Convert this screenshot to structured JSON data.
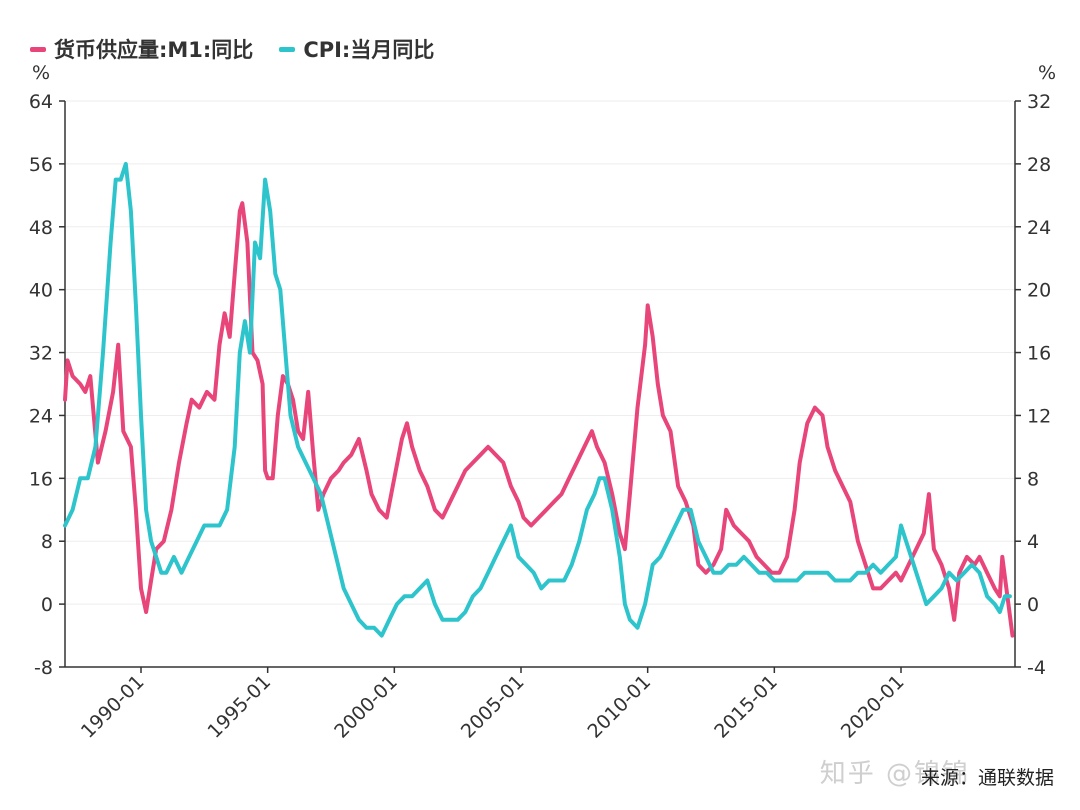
{
  "legend": {
    "m1_label": "货币供应量:M1:同比",
    "cpi_label": "CPI:当月同比"
  },
  "axes": {
    "left_unit": "%",
    "right_unit": "%"
  },
  "watermark": "知乎 @锦锦",
  "source": "来源：通联数据",
  "colors": {
    "m1": "#e8457a",
    "cpi": "#2ec4cc",
    "axis": "#333333",
    "grid": "#eeeeee"
  },
  "chart_data": {
    "type": "line",
    "title": "",
    "x_domain": [
      1987.0,
      2024.5
    ],
    "x_ticks": [
      {
        "x": 1990.0,
        "label": "1990-01"
      },
      {
        "x": 1995.0,
        "label": "1995-01"
      },
      {
        "x": 2000.0,
        "label": "2000-01"
      },
      {
        "x": 2005.0,
        "label": "2005-01"
      },
      {
        "x": 2010.0,
        "label": "2010-01"
      },
      {
        "x": 2015.0,
        "label": "2015-01"
      },
      {
        "x": 2020.0,
        "label": "2020-01"
      }
    ],
    "y_left": {
      "ylim": [
        -8,
        64
      ],
      "ticks": [
        -8,
        0,
        8,
        16,
        24,
        32,
        40,
        48,
        56,
        64
      ],
      "unit": "%"
    },
    "y_right": {
      "ylim": [
        -4,
        32
      ],
      "ticks": [
        -4,
        0,
        4,
        8,
        12,
        16,
        20,
        24,
        28,
        32
      ],
      "unit": "%"
    },
    "legend_position": "top-left",
    "grid": true,
    "series": [
      {
        "name": "货币供应量:M1:同比",
        "axis": "left",
        "color": "#e8457a",
        "points": [
          [
            1987.0,
            26
          ],
          [
            1987.1,
            31
          ],
          [
            1987.3,
            29
          ],
          [
            1987.6,
            28
          ],
          [
            1987.8,
            27
          ],
          [
            1988.0,
            29
          ],
          [
            1988.3,
            18
          ],
          [
            1988.6,
            22
          ],
          [
            1988.9,
            27
          ],
          [
            1989.1,
            33
          ],
          [
            1989.3,
            22
          ],
          [
            1989.6,
            20
          ],
          [
            1989.8,
            12
          ],
          [
            1990.0,
            2
          ],
          [
            1990.2,
            -1
          ],
          [
            1990.4,
            3
          ],
          [
            1990.6,
            7
          ],
          [
            1990.9,
            8
          ],
          [
            1991.2,
            12
          ],
          [
            1991.5,
            18
          ],
          [
            1991.8,
            23
          ],
          [
            1992.0,
            26
          ],
          [
            1992.3,
            25
          ],
          [
            1992.6,
            27
          ],
          [
            1992.9,
            26
          ],
          [
            1993.1,
            33
          ],
          [
            1993.3,
            37
          ],
          [
            1993.5,
            34
          ],
          [
            1993.7,
            42
          ],
          [
            1993.9,
            50
          ],
          [
            1994.0,
            51
          ],
          [
            1994.2,
            46
          ],
          [
            1994.4,
            32
          ],
          [
            1994.6,
            31
          ],
          [
            1994.8,
            28
          ],
          [
            1994.9,
            17
          ],
          [
            1995.0,
            16
          ],
          [
            1995.2,
            16
          ],
          [
            1995.4,
            24
          ],
          [
            1995.6,
            29
          ],
          [
            1995.8,
            28
          ],
          [
            1996.0,
            26
          ],
          [
            1996.2,
            22
          ],
          [
            1996.4,
            21
          ],
          [
            1996.6,
            27
          ],
          [
            1996.8,
            19
          ],
          [
            1997.0,
            12
          ],
          [
            1997.2,
            14
          ],
          [
            1997.5,
            16
          ],
          [
            1997.8,
            17
          ],
          [
            1998.0,
            18
          ],
          [
            1998.3,
            19
          ],
          [
            1998.6,
            21
          ],
          [
            1998.9,
            17
          ],
          [
            1999.1,
            14
          ],
          [
            1999.4,
            12
          ],
          [
            1999.7,
            11
          ],
          [
            2000.0,
            16
          ],
          [
            2000.3,
            21
          ],
          [
            2000.5,
            23
          ],
          [
            2000.7,
            20
          ],
          [
            2001.0,
            17
          ],
          [
            2001.3,
            15
          ],
          [
            2001.6,
            12
          ],
          [
            2001.9,
            11
          ],
          [
            2002.2,
            13
          ],
          [
            2002.5,
            15
          ],
          [
            2002.8,
            17
          ],
          [
            2003.1,
            18
          ],
          [
            2003.4,
            19
          ],
          [
            2003.7,
            20
          ],
          [
            2004.0,
            19
          ],
          [
            2004.3,
            18
          ],
          [
            2004.6,
            15
          ],
          [
            2004.9,
            13
          ],
          [
            2005.1,
            11
          ],
          [
            2005.4,
            10
          ],
          [
            2005.7,
            11
          ],
          [
            2006.0,
            12
          ],
          [
            2006.3,
            13
          ],
          [
            2006.6,
            14
          ],
          [
            2006.9,
            16
          ],
          [
            2007.2,
            18
          ],
          [
            2007.5,
            20
          ],
          [
            2007.8,
            22
          ],
          [
            2008.0,
            20
          ],
          [
            2008.3,
            18
          ],
          [
            2008.6,
            14
          ],
          [
            2008.9,
            9
          ],
          [
            2009.1,
            7
          ],
          [
            2009.3,
            14
          ],
          [
            2009.6,
            25
          ],
          [
            2009.9,
            33
          ],
          [
            2010.0,
            38
          ],
          [
            2010.2,
            34
          ],
          [
            2010.4,
            28
          ],
          [
            2010.6,
            24
          ],
          [
            2010.9,
            22
          ],
          [
            2011.2,
            15
          ],
          [
            2011.5,
            13
          ],
          [
            2011.8,
            10
          ],
          [
            2012.0,
            5
          ],
          [
            2012.3,
            4
          ],
          [
            2012.6,
            5
          ],
          [
            2012.9,
            7
          ],
          [
            2013.1,
            12
          ],
          [
            2013.4,
            10
          ],
          [
            2013.7,
            9
          ],
          [
            2014.0,
            8
          ],
          [
            2014.3,
            6
          ],
          [
            2014.6,
            5
          ],
          [
            2014.9,
            4
          ],
          [
            2015.2,
            4
          ],
          [
            2015.5,
            6
          ],
          [
            2015.8,
            12
          ],
          [
            2016.0,
            18
          ],
          [
            2016.3,
            23
          ],
          [
            2016.6,
            25
          ],
          [
            2016.9,
            24
          ],
          [
            2017.1,
            20
          ],
          [
            2017.4,
            17
          ],
          [
            2017.7,
            15
          ],
          [
            2018.0,
            13
          ],
          [
            2018.3,
            8
          ],
          [
            2018.6,
            5
          ],
          [
            2018.9,
            2
          ],
          [
            2019.2,
            2
          ],
          [
            2019.5,
            3
          ],
          [
            2019.8,
            4
          ],
          [
            2020.0,
            3
          ],
          [
            2020.3,
            5
          ],
          [
            2020.6,
            7
          ],
          [
            2020.9,
            9
          ],
          [
            2021.1,
            14
          ],
          [
            2021.3,
            7
          ],
          [
            2021.6,
            5
          ],
          [
            2021.9,
            2
          ],
          [
            2022.1,
            -2
          ],
          [
            2022.3,
            4
          ],
          [
            2022.6,
            6
          ],
          [
            2022.9,
            5
          ],
          [
            2023.1,
            6
          ],
          [
            2023.4,
            4
          ],
          [
            2023.7,
            2
          ],
          [
            2023.9,
            1
          ],
          [
            2024.0,
            6
          ],
          [
            2024.2,
            1
          ],
          [
            2024.4,
            -4
          ]
        ]
      },
      {
        "name": "CPI:当月同比",
        "axis": "right",
        "color": "#2ec4cc",
        "points": [
          [
            1987.0,
            5
          ],
          [
            1987.3,
            6
          ],
          [
            1987.6,
            8
          ],
          [
            1987.9,
            8
          ],
          [
            1988.2,
            10
          ],
          [
            1988.5,
            16
          ],
          [
            1988.8,
            23
          ],
          [
            1989.0,
            27
          ],
          [
            1989.2,
            27
          ],
          [
            1989.4,
            28
          ],
          [
            1989.6,
            25
          ],
          [
            1989.8,
            19
          ],
          [
            1990.0,
            12
          ],
          [
            1990.2,
            6
          ],
          [
            1990.4,
            4
          ],
          [
            1990.6,
            3
          ],
          [
            1990.8,
            2
          ],
          [
            1991.0,
            2
          ],
          [
            1991.3,
            3
          ],
          [
            1991.6,
            2
          ],
          [
            1991.9,
            3
          ],
          [
            1992.2,
            4
          ],
          [
            1992.5,
            5
          ],
          [
            1992.8,
            5
          ],
          [
            1993.1,
            5
          ],
          [
            1993.4,
            6
          ],
          [
            1993.7,
            10
          ],
          [
            1993.9,
            16
          ],
          [
            1994.1,
            18
          ],
          [
            1994.3,
            16
          ],
          [
            1994.5,
            23
          ],
          [
            1994.7,
            22
          ],
          [
            1994.9,
            27
          ],
          [
            1995.1,
            25
          ],
          [
            1995.3,
            21
          ],
          [
            1995.5,
            20
          ],
          [
            1995.7,
            16
          ],
          [
            1995.9,
            12
          ],
          [
            1996.2,
            10
          ],
          [
            1996.5,
            9
          ],
          [
            1996.8,
            8
          ],
          [
            1997.1,
            7
          ],
          [
            1997.4,
            5
          ],
          [
            1997.7,
            3
          ],
          [
            1998.0,
            1
          ],
          [
            1998.3,
            0
          ],
          [
            1998.6,
            -1
          ],
          [
            1998.9,
            -1.5
          ],
          [
            1999.2,
            -1.5
          ],
          [
            1999.5,
            -2
          ],
          [
            1999.8,
            -1
          ],
          [
            2000.1,
            0
          ],
          [
            2000.4,
            0.5
          ],
          [
            2000.7,
            0.5
          ],
          [
            2001.0,
            1
          ],
          [
            2001.3,
            1.5
          ],
          [
            2001.6,
            0
          ],
          [
            2001.9,
            -1
          ],
          [
            2002.2,
            -1
          ],
          [
            2002.5,
            -1
          ],
          [
            2002.8,
            -0.5
          ],
          [
            2003.1,
            0.5
          ],
          [
            2003.4,
            1
          ],
          [
            2003.7,
            2
          ],
          [
            2004.0,
            3
          ],
          [
            2004.3,
            4
          ],
          [
            2004.6,
            5
          ],
          [
            2004.9,
            3
          ],
          [
            2005.2,
            2.5
          ],
          [
            2005.5,
            2
          ],
          [
            2005.8,
            1
          ],
          [
            2006.1,
            1.5
          ],
          [
            2006.4,
            1.5
          ],
          [
            2006.7,
            1.5
          ],
          [
            2007.0,
            2.5
          ],
          [
            2007.3,
            4
          ],
          [
            2007.6,
            6
          ],
          [
            2007.9,
            7
          ],
          [
            2008.1,
            8
          ],
          [
            2008.3,
            8
          ],
          [
            2008.6,
            6
          ],
          [
            2008.9,
            3
          ],
          [
            2009.1,
            0
          ],
          [
            2009.3,
            -1
          ],
          [
            2009.6,
            -1.5
          ],
          [
            2009.9,
            0
          ],
          [
            2010.2,
            2.5
          ],
          [
            2010.5,
            3
          ],
          [
            2010.8,
            4
          ],
          [
            2011.1,
            5
          ],
          [
            2011.4,
            6
          ],
          [
            2011.7,
            6
          ],
          [
            2012.0,
            4
          ],
          [
            2012.3,
            3
          ],
          [
            2012.6,
            2
          ],
          [
            2012.9,
            2
          ],
          [
            2013.2,
            2.5
          ],
          [
            2013.5,
            2.5
          ],
          [
            2013.8,
            3
          ],
          [
            2014.1,
            2.5
          ],
          [
            2014.4,
            2
          ],
          [
            2014.7,
            2
          ],
          [
            2015.0,
            1.5
          ],
          [
            2015.3,
            1.5
          ],
          [
            2015.6,
            1.5
          ],
          [
            2015.9,
            1.5
          ],
          [
            2016.2,
            2
          ],
          [
            2016.5,
            2
          ],
          [
            2016.8,
            2
          ],
          [
            2017.1,
            2
          ],
          [
            2017.4,
            1.5
          ],
          [
            2017.7,
            1.5
          ],
          [
            2018.0,
            1.5
          ],
          [
            2018.3,
            2
          ],
          [
            2018.6,
            2
          ],
          [
            2018.9,
            2.5
          ],
          [
            2019.2,
            2
          ],
          [
            2019.5,
            2.5
          ],
          [
            2019.8,
            3
          ],
          [
            2020.0,
            5
          ],
          [
            2020.2,
            4
          ],
          [
            2020.5,
            2.5
          ],
          [
            2020.8,
            1
          ],
          [
            2021.0,
            0
          ],
          [
            2021.3,
            0.5
          ],
          [
            2021.6,
            1
          ],
          [
            2021.9,
            2
          ],
          [
            2022.2,
            1.5
          ],
          [
            2022.5,
            2
          ],
          [
            2022.8,
            2.5
          ],
          [
            2023.1,
            2
          ],
          [
            2023.4,
            0.5
          ],
          [
            2023.7,
            0
          ],
          [
            2023.9,
            -0.5
          ],
          [
            2024.1,
            0.5
          ],
          [
            2024.3,
            0.5
          ]
        ]
      }
    ]
  }
}
